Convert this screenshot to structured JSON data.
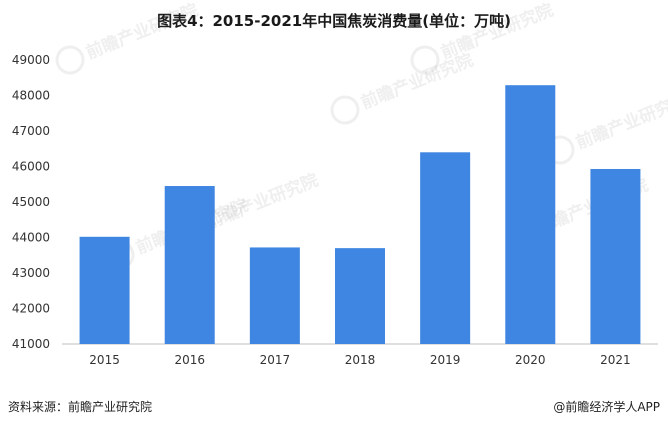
{
  "chart_data": {
    "type": "bar",
    "title": "图表4：2015-2021年中国焦炭消费量(单位：万吨)",
    "categories": [
      "2015",
      "2016",
      "2017",
      "2018",
      "2019",
      "2020",
      "2021"
    ],
    "values": [
      44020,
      45450,
      43720,
      43700,
      46400,
      48290,
      45930
    ],
    "ylim": [
      41000,
      49000
    ],
    "yticks": [
      41000,
      42000,
      43000,
      44000,
      45000,
      46000,
      47000,
      48000,
      49000
    ],
    "grid": false,
    "legend": "none",
    "bar_color": "#3e86e2"
  },
  "footer": {
    "source": "资料来源：前瞻产业研究院",
    "credit": "@前瞻经济学人APP"
  },
  "watermark": {
    "text": "前瞻产业研究院"
  }
}
